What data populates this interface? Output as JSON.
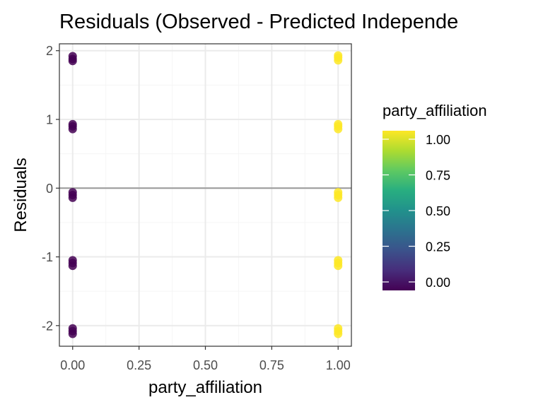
{
  "chart_data": {
    "type": "scatter",
    "title": "Residuals (Observed - Predicted Independe",
    "xlabel": "party_affiliation",
    "ylabel": "Residuals",
    "xlim": [
      -0.05,
      1.05
    ],
    "ylim": [
      -2.3,
      2.1
    ],
    "x_ticks": [
      0,
      0.25,
      0.5,
      0.75,
      1
    ],
    "x_tick_labels": [
      "0.00",
      "0.25",
      "0.50",
      "0.75",
      "1.00"
    ],
    "y_ticks": [
      -2,
      -1,
      0,
      1,
      2
    ],
    "y_tick_labels": [
      "-2",
      "-1",
      "0",
      "1",
      "2"
    ],
    "reference_line_y": 0,
    "grid": true,
    "points": [
      {
        "x": 0,
        "y": 1.85
      },
      {
        "x": 0,
        "y": 1.88
      },
      {
        "x": 0,
        "y": 1.92
      },
      {
        "x": 0,
        "y": 0.86
      },
      {
        "x": 0,
        "y": 0.9
      },
      {
        "x": 0,
        "y": 0.93
      },
      {
        "x": 0,
        "y": -0.14
      },
      {
        "x": 0,
        "y": -0.1
      },
      {
        "x": 0,
        "y": -0.06
      },
      {
        "x": 0,
        "y": -1.13
      },
      {
        "x": 0,
        "y": -1.09
      },
      {
        "x": 0,
        "y": -1.05
      },
      {
        "x": 0,
        "y": -2.12
      },
      {
        "x": 0,
        "y": -2.08
      },
      {
        "x": 0,
        "y": -2.04
      },
      {
        "x": 1,
        "y": 1.86
      },
      {
        "x": 1,
        "y": 1.9
      },
      {
        "x": 1,
        "y": 1.93
      },
      {
        "x": 1,
        "y": 0.86
      },
      {
        "x": 1,
        "y": 0.9
      },
      {
        "x": 1,
        "y": 0.93
      },
      {
        "x": 1,
        "y": -0.14
      },
      {
        "x": 1,
        "y": -0.1
      },
      {
        "x": 1,
        "y": -0.06
      },
      {
        "x": 1,
        "y": -1.13
      },
      {
        "x": 1,
        "y": -1.09
      },
      {
        "x": 1,
        "y": -1.05
      },
      {
        "x": 1,
        "y": -2.12
      },
      {
        "x": 1,
        "y": -2.08
      },
      {
        "x": 1,
        "y": -2.04
      }
    ],
    "legend": {
      "title": "party_affiliation",
      "placement": "right",
      "ticks": [
        0,
        0.25,
        0.5,
        0.75,
        1
      ],
      "tick_labels": [
        "0.00",
        "0.25",
        "0.50",
        "0.75",
        "1.00"
      ],
      "colormap": "viridis"
    },
    "colors": {
      "low": "#440154",
      "high": "#FDE725",
      "reference_line": "#999999",
      "panel_border": "#333333",
      "grid_major": "#EBEBEB",
      "grid_minor": "#F5F5F5",
      "axis_text": "#4D4D4D"
    }
  }
}
